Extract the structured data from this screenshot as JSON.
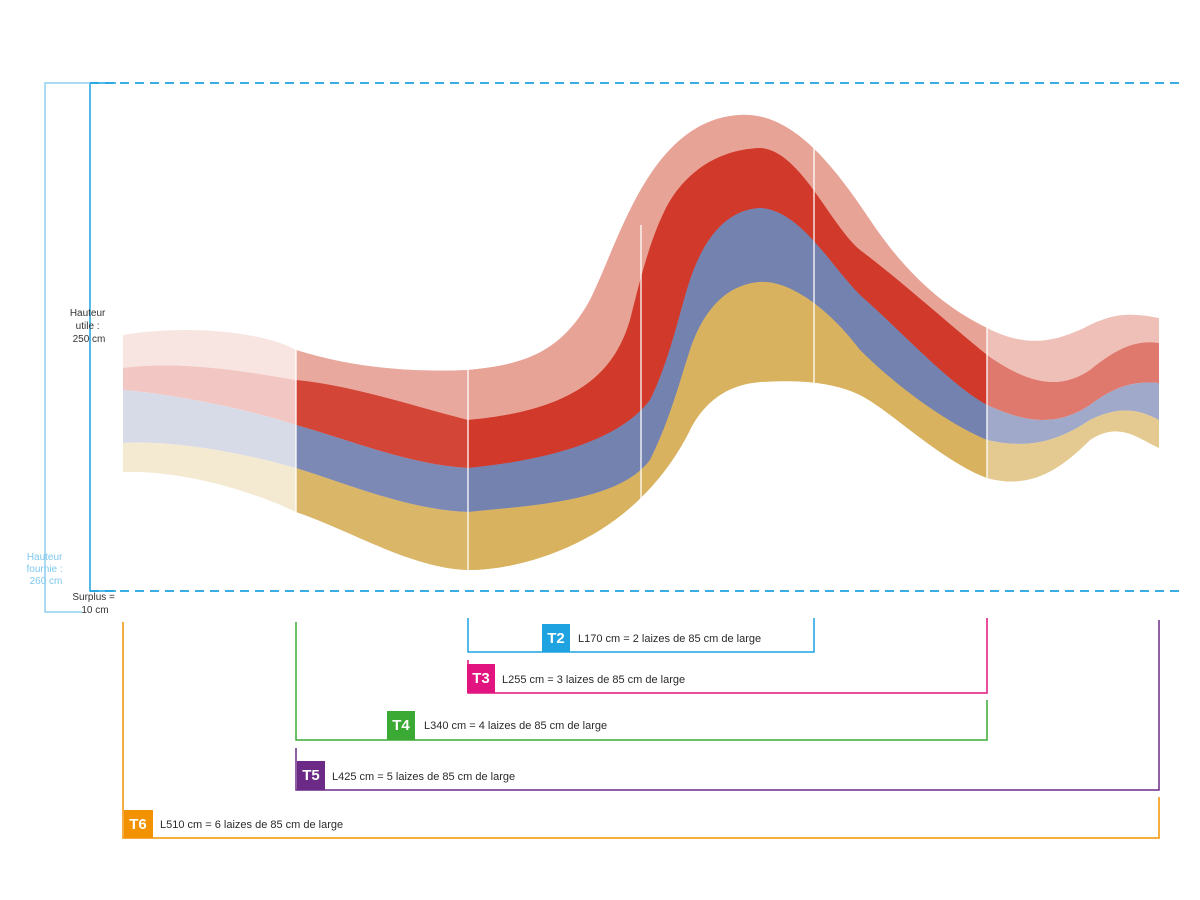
{
  "labels": {
    "hauteur_utile": [
      "Hauteur",
      "utile :",
      "250 cm"
    ],
    "hauteur_fournie": [
      "Hauteur",
      "fournie :",
      "260 cm"
    ],
    "surplus": [
      "Surplus =",
      "10 cm"
    ]
  },
  "sizes": [
    {
      "code": "T2",
      "text": "L170 cm = 2 laizes de 85 cm de large",
      "color": "#1ea3e0"
    },
    {
      "code": "T3",
      "text": "L255 cm = 3 laizes de 85 cm de large",
      "color": "#e2147f"
    },
    {
      "code": "T4",
      "text": "L340 cm = 4 laizes de 85 cm de large",
      "color": "#3aaa35"
    },
    {
      "code": "T5",
      "text": "L425 cm = 5 laizes de 85 cm de large",
      "color": "#6b2a86"
    },
    {
      "code": "T6",
      "text": "L510 cm = 6 laizes de 85 cm de large",
      "color": "#f39200"
    }
  ],
  "colors": {
    "guide_dashed": "#1ea3e0",
    "guide_light": "#8fd0f0",
    "band_pink": "#e8a397",
    "band_red": "#d13a2a",
    "band_blue": "#7482b0",
    "band_yellow": "#d8b25e"
  }
}
